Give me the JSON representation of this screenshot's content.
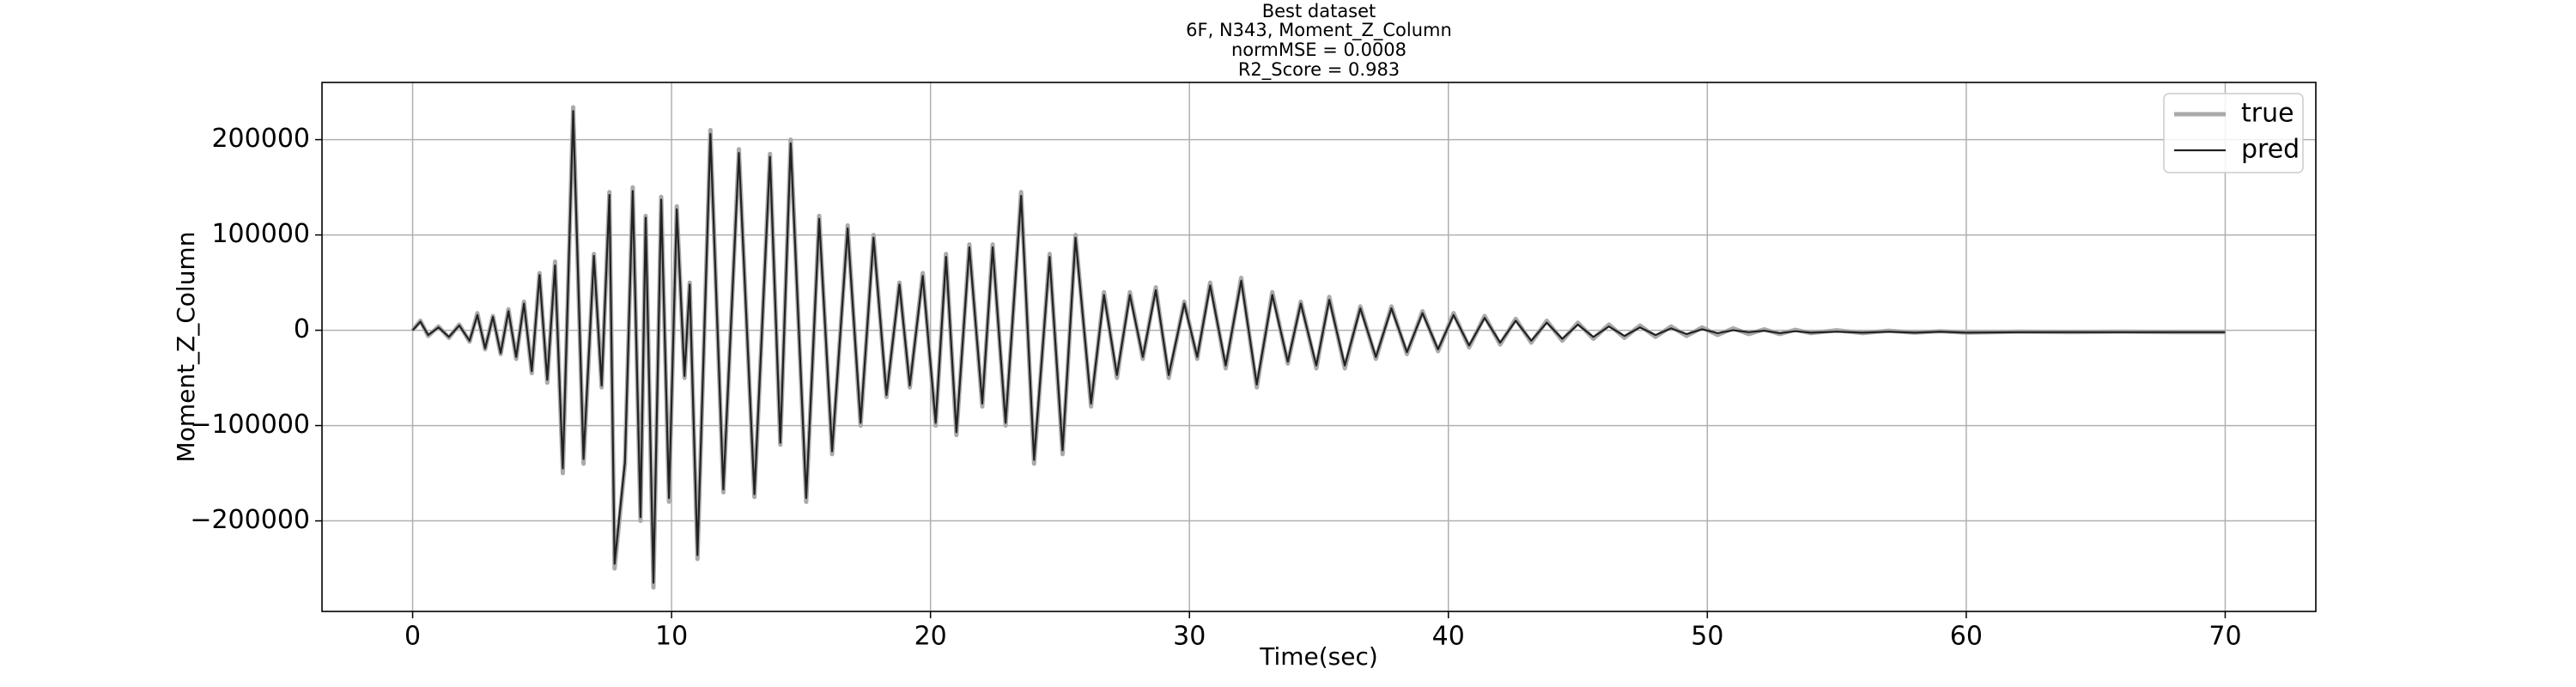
{
  "chart_data": {
    "type": "line",
    "title": "Best dataset",
    "subtitle": [
      "6F, N343, Moment_Z_Column",
      "normMSE = 0.0008",
      "R2_Score = 0.983"
    ],
    "x_label": "Time(sec)",
    "y_label": "Moment_Z_Column",
    "x": [
      0,
      0.3,
      0.6,
      1,
      1.4,
      1.8,
      2.2,
      2.5,
      2.8,
      3.1,
      3.4,
      3.7,
      4.0,
      4.3,
      4.6,
      4.9,
      5.2,
      5.5,
      5.8,
      6.2,
      6.6,
      7.0,
      7.3,
      7.6,
      7.8,
      8.2,
      8.5,
      8.8,
      9.0,
      9.3,
      9.6,
      9.9,
      10.2,
      10.5,
      10.7,
      11.0,
      11.5,
      12.0,
      12.6,
      13.2,
      13.8,
      14.2,
      14.6,
      15.2,
      15.7,
      16.2,
      16.8,
      17.3,
      17.8,
      18.3,
      18.8,
      19.2,
      19.7,
      20.2,
      20.6,
      21.0,
      21.5,
      22.0,
      22.4,
      22.9,
      23.5,
      24.0,
      24.6,
      25.1,
      25.6,
      26.2,
      26.7,
      27.2,
      27.7,
      28.2,
      28.7,
      29.2,
      29.8,
      30.3,
      30.8,
      31.4,
      32.0,
      32.6,
      33.2,
      33.8,
      34.3,
      34.9,
      35.4,
      36.0,
      36.6,
      37.2,
      37.8,
      38.4,
      39.0,
      39.6,
      40.2,
      40.8,
      41.4,
      42.0,
      42.6,
      43.2,
      43.8,
      44.4,
      45.0,
      45.6,
      46.2,
      46.8,
      47.4,
      48.0,
      48.6,
      49.2,
      49.8,
      50.4,
      51.0,
      51.6,
      52.2,
      52.8,
      53.4,
      54.0,
      55.0,
      56.0,
      57.0,
      58.0,
      59.0,
      60.0,
      62,
      64,
      66,
      68,
      70
    ],
    "series": [
      {
        "name": "true",
        "color": "#aaaaaa",
        "values": [
          0,
          10000,
          -6000,
          4000,
          -8000,
          6000,
          -12000,
          18000,
          -20000,
          15000,
          -25000,
          22000,
          -30000,
          30000,
          -45000,
          60000,
          -55000,
          72000,
          -150000,
          234000,
          -140000,
          80000,
          -60000,
          145000,
          -250000,
          -140000,
          150000,
          -200000,
          120000,
          -270000,
          140000,
          -180000,
          130000,
          -50000,
          50000,
          -240000,
          210000,
          -170000,
          190000,
          -175000,
          185000,
          -120000,
          200000,
          -180000,
          120000,
          -130000,
          110000,
          -100000,
          100000,
          -70000,
          50000,
          -60000,
          60000,
          -100000,
          80000,
          -110000,
          90000,
          -80000,
          90000,
          -100000,
          145000,
          -140000,
          80000,
          -130000,
          100000,
          -80000,
          40000,
          -50000,
          40000,
          -30000,
          45000,
          -50000,
          30000,
          -30000,
          50000,
          -40000,
          55000,
          -60000,
          40000,
          -35000,
          30000,
          -40000,
          35000,
          -40000,
          25000,
          -30000,
          25000,
          -25000,
          20000,
          -22000,
          18000,
          -18000,
          15000,
          -15000,
          12000,
          -13000,
          10000,
          -11000,
          8000,
          -9000,
          6000,
          -8000,
          5000,
          -7000,
          4000,
          -6000,
          3000,
          -5000,
          2000,
          -4000,
          1000,
          -4000,
          500,
          -3000,
          0,
          -3000,
          -500,
          -2500,
          -1000,
          -2500,
          -1500,
          -2000,
          -1500,
          -2000,
          -2000
        ]
      },
      {
        "name": "pred",
        "color": "#222222",
        "values": [
          0,
          9000,
          -5000,
          3000,
          -7000,
          5000,
          -11000,
          16000,
          -19000,
          14000,
          -24000,
          20000,
          -28000,
          28000,
          -43000,
          58000,
          -52000,
          68000,
          -145000,
          230000,
          -135000,
          78000,
          -58000,
          142000,
          -245000,
          -138000,
          146000,
          -196000,
          118000,
          -265000,
          137000,
          -176000,
          127000,
          -48000,
          48000,
          -236000,
          206000,
          -167000,
          186000,
          -172000,
          182000,
          -118000,
          196000,
          -176000,
          117000,
          -127000,
          107000,
          -97000,
          97000,
          -68000,
          48000,
          -58000,
          57000,
          -97000,
          77000,
          -107000,
          87000,
          -77000,
          87000,
          -97000,
          141000,
          -136000,
          77000,
          -126000,
          97000,
          -77000,
          37000,
          -47000,
          37000,
          -28000,
          42000,
          -47000,
          28000,
          -28000,
          47000,
          -37000,
          52000,
          -57000,
          37000,
          -33000,
          28000,
          -37000,
          32000,
          -37000,
          23000,
          -28000,
          23000,
          -23000,
          18000,
          -20000,
          16000,
          -16000,
          13000,
          -13000,
          10000,
          -11000,
          8000,
          -9000,
          6000,
          -7000,
          4000,
          -6000,
          3000,
          -5000,
          2000,
          -4000,
          1000,
          -3000,
          0,
          -2000,
          -500,
          -3000,
          -1000,
          -2500,
          -1500,
          -2500,
          -1500,
          -2500,
          -1500,
          -2500,
          -2000,
          -2000,
          -2000,
          -2000,
          -2000
        ]
      }
    ],
    "xlim": [
      -3.5,
      73.5
    ],
    "ylim": [
      -295000,
      260000
    ],
    "xticks": [
      0,
      10,
      20,
      30,
      40,
      50,
      60,
      70
    ],
    "yticks": [
      {
        "value": -200000,
        "label": "−200000"
      },
      {
        "value": -100000,
        "label": "−100000"
      },
      0,
      100000,
      200000
    ],
    "grid": true,
    "legend": "upper right"
  }
}
